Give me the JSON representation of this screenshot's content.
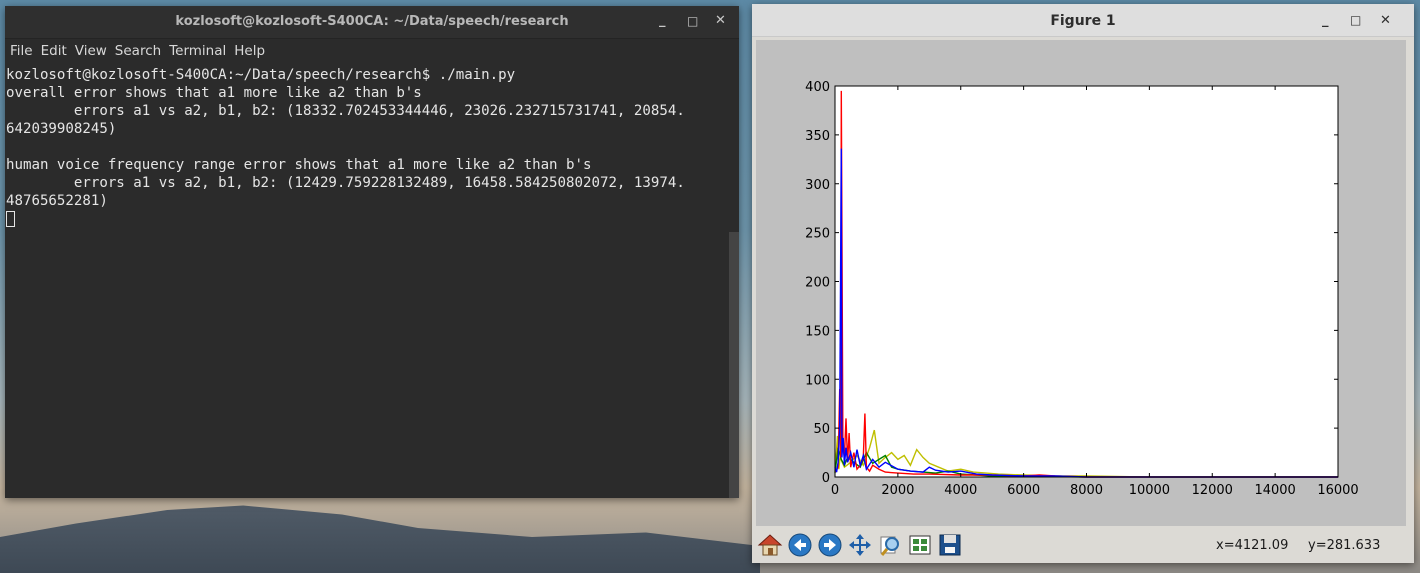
{
  "terminal": {
    "title": "kozlosoft@kozlosoft-S400CA: ~/Data/speech/research",
    "menu": [
      "File",
      "Edit",
      "View",
      "Search",
      "Terminal",
      "Help"
    ],
    "lines": [
      "kozlosoft@kozlosoft-S400CA:~/Data/speech/research$ ./main.py",
      "overall error shows that a1 more like a2 than b's",
      "        errors a1 vs a2, b1, b2: (18332.702453344446, 23026.232715731741, 20854.",
      "642039908245)",
      "",
      "human voice frequency range error shows that a1 more like a2 than b's",
      "        errors a1 vs a2, b1, b2: (12429.759228132489, 16458.584250802072, 13974.",
      "48765652281)"
    ],
    "controls": {
      "minimize": "_",
      "maximize": "□",
      "close": "✕"
    }
  },
  "figure": {
    "title": "Figure 1",
    "controls": {
      "minimize": "_",
      "maximize": "□",
      "close": "✕"
    },
    "coords": {
      "x": "x=4121.09",
      "y": "y=281.633"
    },
    "toolbar_icons": [
      "home-icon",
      "back-icon",
      "forward-icon",
      "pan-icon",
      "zoom-icon",
      "configure-subplots-icon",
      "save-icon"
    ]
  },
  "chart_data": {
    "type": "line",
    "xlim": [
      0,
      16000
    ],
    "ylim": [
      0,
      400
    ],
    "xticks": [
      0,
      2000,
      4000,
      6000,
      8000,
      10000,
      12000,
      14000,
      16000
    ],
    "yticks": [
      0,
      50,
      100,
      150,
      200,
      250,
      300,
      350,
      400
    ],
    "grid": false,
    "series": [
      {
        "color": "#bfbf00",
        "x": [
          0,
          80,
          120,
          160,
          300,
          500,
          700,
          900,
          1100,
          1250,
          1400,
          1600,
          1800,
          2000,
          2200,
          2400,
          2600,
          2800,
          3000,
          3300,
          3600,
          4000,
          4400,
          4800,
          5200,
          6000,
          7000,
          8000,
          10000,
          16000
        ],
        "y": [
          5,
          42,
          8,
          20,
          10,
          15,
          22,
          12,
          30,
          48,
          14,
          20,
          25,
          18,
          22,
          12,
          28,
          20,
          14,
          10,
          6,
          8,
          5,
          4,
          3,
          2,
          1,
          1,
          0,
          0
        ]
      },
      {
        "color": "#008000",
        "x": [
          0,
          100,
          200,
          300,
          400,
          600,
          800,
          1000,
          1200,
          1400,
          1600,
          1800,
          2000,
          2400,
          2800,
          3200,
          3600,
          4000,
          4500,
          5000,
          6000,
          8000,
          16000
        ],
        "y": [
          4,
          30,
          18,
          12,
          20,
          15,
          10,
          25,
          14,
          18,
          22,
          10,
          8,
          6,
          5,
          4,
          6,
          3,
          2,
          1,
          1,
          0,
          0
        ]
      },
      {
        "color": "#ff0000",
        "x": [
          0,
          100,
          150,
          180,
          200,
          250,
          300,
          350,
          400,
          450,
          500,
          600,
          700,
          800,
          900,
          950,
          1000,
          1100,
          1200,
          1400,
          1600,
          2000,
          2500,
          3000,
          4000,
          5000,
          6000,
          6500,
          7000,
          8000,
          16000
        ],
        "y": [
          5,
          10,
          90,
          20,
          395,
          30,
          20,
          60,
          15,
          45,
          10,
          25,
          8,
          12,
          20,
          65,
          10,
          6,
          12,
          8,
          5,
          4,
          3,
          3,
          2,
          2,
          1,
          2,
          1,
          0,
          0
        ]
      },
      {
        "color": "#0000ff",
        "x": [
          0,
          50,
          100,
          150,
          200,
          220,
          260,
          300,
          350,
          400,
          500,
          600,
          700,
          800,
          900,
          1000,
          1200,
          1400,
          1600,
          2000,
          2400,
          2800,
          3000,
          3200,
          3600,
          4000,
          4500,
          5000,
          6000,
          7000,
          8000,
          16000
        ],
        "y": [
          10,
          5,
          15,
          50,
          336,
          20,
          40,
          12,
          30,
          15,
          25,
          10,
          28,
          12,
          22,
          8,
          18,
          10,
          15,
          8,
          6,
          5,
          10,
          7,
          5,
          6,
          3,
          2,
          1,
          1,
          0,
          0
        ]
      }
    ]
  }
}
